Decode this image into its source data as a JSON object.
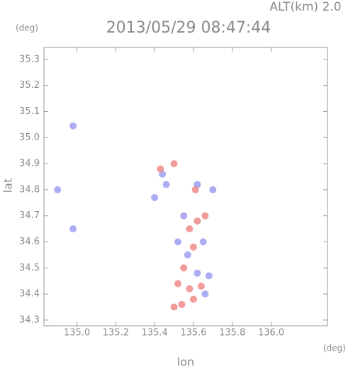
{
  "chart_data": {
    "type": "scatter",
    "title": "2013/05/29 08:47:44",
    "subtitle": "ALT(km) 2.0",
    "x_label": "lon",
    "y_label": "lat",
    "x_unit": "(deg)",
    "y_unit": "(deg)",
    "xlim": [
      134.83,
      136.29
    ],
    "ylim": [
      34.278,
      35.346
    ],
    "xticks": [
      {
        "value": 135.0,
        "label": "135.0"
      },
      135.2,
      135.4,
      135.6,
      135.8,
      {
        "value": 136.0,
        "label": "136.0"
      }
    ],
    "yticks": [
      34.3,
      34.4,
      34.5,
      34.6,
      34.7,
      34.8,
      34.9,
      {
        "value": 35.0,
        "label": "35.0"
      },
      35.1,
      35.2,
      35.3
    ],
    "series": [
      {
        "color": "#9f9ff2",
        "x": [
          134.98,
          134.9,
          134.98,
          135.4,
          135.46,
          135.7,
          135.55,
          135.52,
          135.65,
          135.62,
          135.68,
          135.66,
          135.57,
          135.62,
          135.44
        ],
        "values": [
          35.045,
          34.8,
          34.65,
          34.77,
          34.82,
          34.8,
          34.7,
          34.6,
          34.6,
          34.48,
          34.47,
          34.4,
          34.55,
          34.82,
          34.86
        ]
      },
      {
        "color": "#f08a8a",
        "x": [
          135.43,
          135.5,
          135.61,
          135.58,
          135.62,
          135.66,
          135.6,
          135.55,
          135.58,
          135.54,
          135.5,
          135.52,
          135.64,
          135.6
        ],
        "values": [
          34.88,
          34.9,
          34.8,
          34.65,
          34.68,
          34.7,
          34.58,
          34.5,
          34.42,
          34.36,
          34.35,
          34.44,
          34.43,
          34.38
        ]
      }
    ]
  }
}
